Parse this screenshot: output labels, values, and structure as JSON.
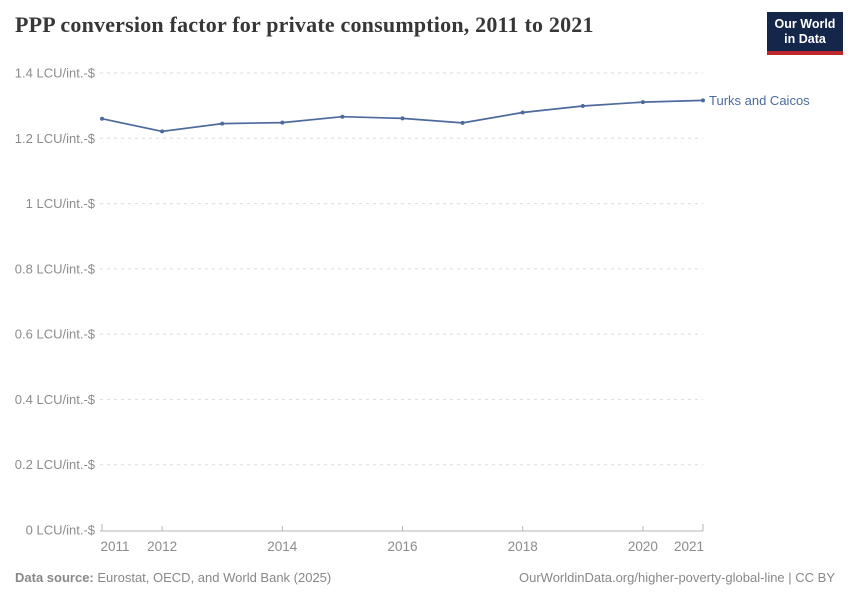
{
  "header": {
    "title": "PPP conversion factor for private consumption, 2011 to 2021",
    "logo": {
      "line1": "Our World",
      "line2": "in Data"
    }
  },
  "chart_data": {
    "type": "line",
    "title": "PPP conversion factor for private consumption, 2011 to 2021",
    "x": [
      2011,
      2012,
      2013,
      2014,
      2015,
      2016,
      2017,
      2018,
      2019,
      2020,
      2021
    ],
    "series": [
      {
        "name": "Turks and Caicos",
        "color": "#4c6a9c",
        "values": [
          1.26,
          1.221,
          1.245,
          1.248,
          1.266,
          1.261,
          1.247,
          1.279,
          1.299,
          1.311,
          1.316
        ]
      }
    ],
    "xlim": [
      2011,
      2021
    ],
    "ylim": [
      0,
      1.4
    ],
    "x_ticks": [
      2011,
      2012,
      2014,
      2016,
      2018,
      2020,
      2021
    ],
    "y_ticks": [
      0,
      0.2,
      0.4,
      0.6,
      0.8,
      1,
      1.2,
      1.4
    ],
    "y_tick_suffix": " LCU/int.-$",
    "xlabel": "",
    "ylabel": "",
    "grid": "horizontal-dashed",
    "legend_position": "line-end-label"
  },
  "footer": {
    "source_label": "Data source:",
    "source_text": "Eurostat, OECD, and World Bank (2025)",
    "right_text": "OurWorldinData.org/higher-poverty-global-line | CC BY"
  },
  "colors": {
    "accent_blue": "#4c6a9c",
    "logo_bg": "#14264a",
    "logo_red": "#be282d",
    "grid": "#dbdbdb",
    "axis": "#b5b5b5",
    "axis_text": "#8c8c8c",
    "title_text": "#373737",
    "footer_text": "#888888"
  }
}
